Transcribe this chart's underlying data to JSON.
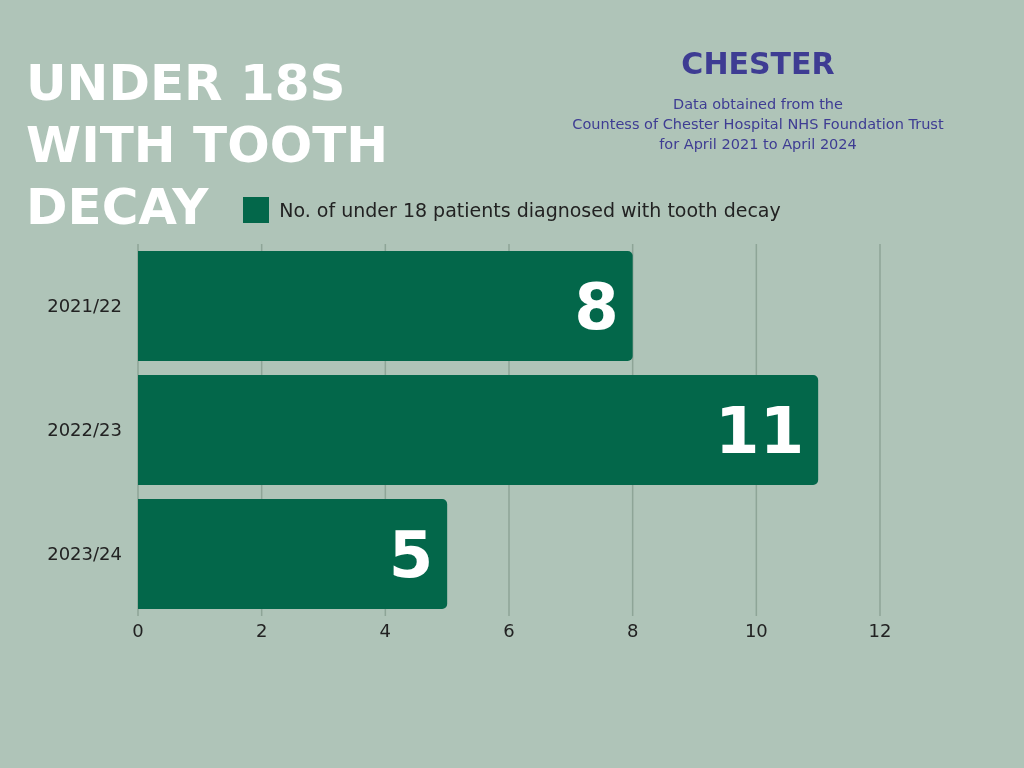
{
  "chart_data": {
    "type": "bar",
    "orientation": "horizontal",
    "title": "UNDER 18S WITH TOOTH DECAY",
    "subtitle": "CHESTER",
    "annotations": [
      "Data obtained from the\nCountess of Chester Hospital NHS Foundation Trust\nfor April 2021 to April 2024"
    ],
    "categories": [
      "2021/22",
      "2022/23",
      "2023/24"
    ],
    "series": [
      {
        "name": "No. of under 18 patients diagnosed with tooth decay",
        "color": "#03674a",
        "values": [
          8,
          11,
          5
        ]
      }
    ],
    "xlim": [
      0,
      12
    ],
    "xticks": [
      0,
      2,
      4,
      6,
      8,
      10,
      12
    ],
    "grid": "x",
    "legend": "top",
    "data_labels": true
  }
}
